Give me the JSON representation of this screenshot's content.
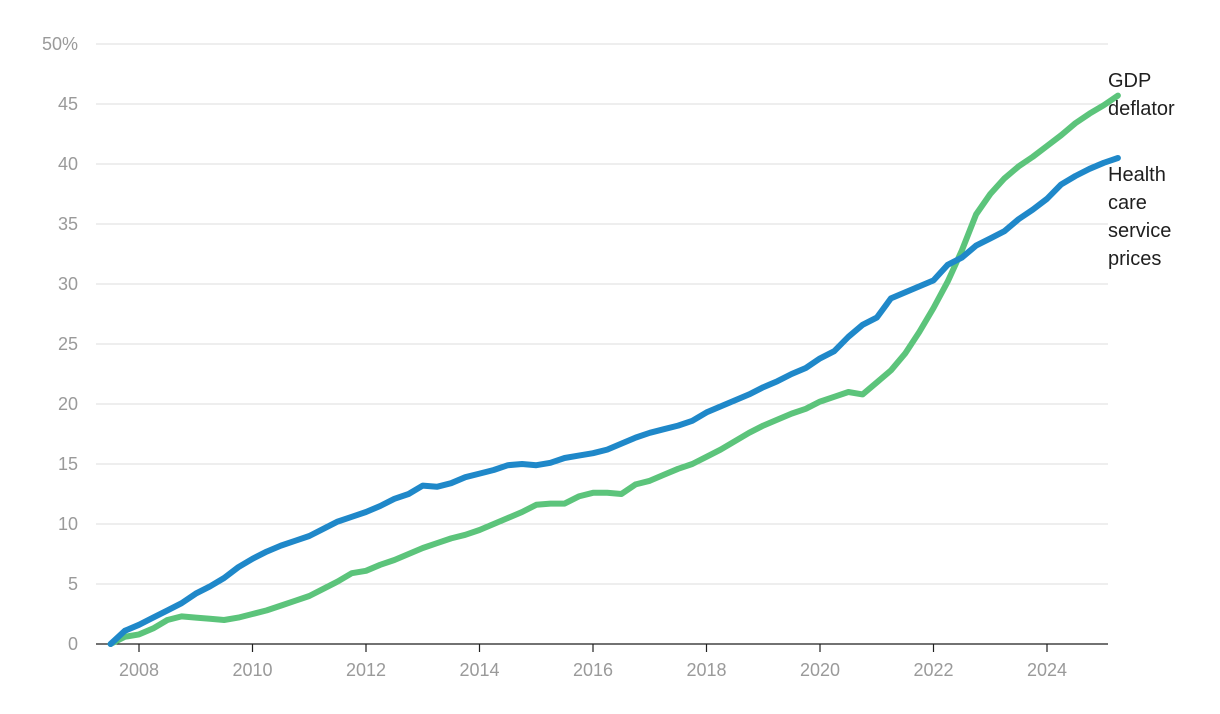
{
  "chart_data": {
    "type": "line",
    "title": "",
    "xlabel": "",
    "ylabel": "",
    "ylim": [
      0,
      50
    ],
    "xlim": [
      2007.0,
      2025.0
    ],
    "y_ticks": [
      {
        "value": 0,
        "label": "0"
      },
      {
        "value": 5,
        "label": "5"
      },
      {
        "value": 10,
        "label": "10"
      },
      {
        "value": 15,
        "label": "15"
      },
      {
        "value": 20,
        "label": "20"
      },
      {
        "value": 25,
        "label": "25"
      },
      {
        "value": 30,
        "label": "30"
      },
      {
        "value": 35,
        "label": "35"
      },
      {
        "value": 40,
        "label": "40"
      },
      {
        "value": 45,
        "label": "45"
      },
      {
        "value": 50,
        "label": "50%"
      }
    ],
    "x_ticks": [
      {
        "value": 2008,
        "label": "2008"
      },
      {
        "value": 2010,
        "label": "2010"
      },
      {
        "value": 2012,
        "label": "2012"
      },
      {
        "value": 2014,
        "label": "2014"
      },
      {
        "value": 2016,
        "label": "2016"
      },
      {
        "value": 2018,
        "label": "2018"
      },
      {
        "value": 2020,
        "label": "2020"
      },
      {
        "value": 2022,
        "label": "2022"
      },
      {
        "value": 2024,
        "label": "2024"
      }
    ],
    "grid": true,
    "legend": "direct labels at right end of lines",
    "series": [
      {
        "key": "gdp",
        "name": "GDP deflator",
        "label_lines": [
          "GDP",
          "deflator"
        ],
        "color": "#5cc47b",
        "points": [
          [
            2007.5,
            0.0
          ],
          [
            2007.75,
            0.6
          ],
          [
            2008.0,
            0.8
          ],
          [
            2008.25,
            1.3
          ],
          [
            2008.5,
            2.0
          ],
          [
            2008.75,
            2.3
          ],
          [
            2009.0,
            2.2
          ],
          [
            2009.25,
            2.1
          ],
          [
            2009.5,
            2.0
          ],
          [
            2009.75,
            2.2
          ],
          [
            2010.0,
            2.5
          ],
          [
            2010.25,
            2.8
          ],
          [
            2010.5,
            3.2
          ],
          [
            2010.75,
            3.6
          ],
          [
            2011.0,
            4.0
          ],
          [
            2011.25,
            4.6
          ],
          [
            2011.5,
            5.2
          ],
          [
            2011.75,
            5.9
          ],
          [
            2012.0,
            6.1
          ],
          [
            2012.25,
            6.6
          ],
          [
            2012.5,
            7.0
          ],
          [
            2012.75,
            7.5
          ],
          [
            2013.0,
            8.0
          ],
          [
            2013.25,
            8.4
          ],
          [
            2013.5,
            8.8
          ],
          [
            2013.75,
            9.1
          ],
          [
            2014.0,
            9.5
          ],
          [
            2014.25,
            10.0
          ],
          [
            2014.5,
            10.5
          ],
          [
            2014.75,
            11.0
          ],
          [
            2015.0,
            11.6
          ],
          [
            2015.25,
            11.7
          ],
          [
            2015.5,
            11.7
          ],
          [
            2015.75,
            12.3
          ],
          [
            2016.0,
            12.6
          ],
          [
            2016.25,
            12.6
          ],
          [
            2016.5,
            12.5
          ],
          [
            2016.75,
            13.3
          ],
          [
            2017.0,
            13.6
          ],
          [
            2017.25,
            14.1
          ],
          [
            2017.5,
            14.6
          ],
          [
            2017.75,
            15.0
          ],
          [
            2018.0,
            15.6
          ],
          [
            2018.25,
            16.2
          ],
          [
            2018.5,
            16.9
          ],
          [
            2018.75,
            17.6
          ],
          [
            2019.0,
            18.2
          ],
          [
            2019.25,
            18.7
          ],
          [
            2019.5,
            19.2
          ],
          [
            2019.75,
            19.6
          ],
          [
            2020.0,
            20.2
          ],
          [
            2020.25,
            20.6
          ],
          [
            2020.5,
            21.0
          ],
          [
            2020.75,
            20.8
          ],
          [
            2021.0,
            21.8
          ],
          [
            2021.25,
            22.8
          ],
          [
            2021.5,
            24.2
          ],
          [
            2021.75,
            26.0
          ],
          [
            2022.0,
            28.0
          ],
          [
            2022.25,
            30.2
          ],
          [
            2022.5,
            32.8
          ],
          [
            2022.75,
            35.8
          ],
          [
            2023.0,
            37.5
          ],
          [
            2023.25,
            38.8
          ],
          [
            2023.5,
            39.8
          ],
          [
            2023.75,
            40.6
          ],
          [
            2024.0,
            41.5
          ],
          [
            2024.25,
            42.4
          ],
          [
            2024.5,
            43.4
          ],
          [
            2024.75,
            44.2
          ],
          [
            2025.0,
            44.9
          ],
          [
            2025.25,
            45.7
          ]
        ]
      },
      {
        "key": "health",
        "name": "Health care service prices",
        "label_lines": [
          "Health",
          "care",
          "service",
          "prices"
        ],
        "color": "#1f88c9",
        "points": [
          [
            2007.5,
            0.0
          ],
          [
            2007.75,
            1.1
          ],
          [
            2008.0,
            1.6
          ],
          [
            2008.25,
            2.2
          ],
          [
            2008.5,
            2.8
          ],
          [
            2008.75,
            3.4
          ],
          [
            2009.0,
            4.2
          ],
          [
            2009.25,
            4.8
          ],
          [
            2009.5,
            5.5
          ],
          [
            2009.75,
            6.4
          ],
          [
            2010.0,
            7.1
          ],
          [
            2010.25,
            7.7
          ],
          [
            2010.5,
            8.2
          ],
          [
            2010.75,
            8.6
          ],
          [
            2011.0,
            9.0
          ],
          [
            2011.25,
            9.6
          ],
          [
            2011.5,
            10.2
          ],
          [
            2011.75,
            10.6
          ],
          [
            2012.0,
            11.0
          ],
          [
            2012.25,
            11.5
          ],
          [
            2012.5,
            12.1
          ],
          [
            2012.75,
            12.5
          ],
          [
            2013.0,
            13.2
          ],
          [
            2013.25,
            13.1
          ],
          [
            2013.5,
            13.4
          ],
          [
            2013.75,
            13.9
          ],
          [
            2014.0,
            14.2
          ],
          [
            2014.25,
            14.5
          ],
          [
            2014.5,
            14.9
          ],
          [
            2014.75,
            15.0
          ],
          [
            2015.0,
            14.9
          ],
          [
            2015.25,
            15.1
          ],
          [
            2015.5,
            15.5
          ],
          [
            2015.75,
            15.7
          ],
          [
            2016.0,
            15.9
          ],
          [
            2016.25,
            16.2
          ],
          [
            2016.5,
            16.7
          ],
          [
            2016.75,
            17.2
          ],
          [
            2017.0,
            17.6
          ],
          [
            2017.25,
            17.9
          ],
          [
            2017.5,
            18.2
          ],
          [
            2017.75,
            18.6
          ],
          [
            2018.0,
            19.3
          ],
          [
            2018.25,
            19.8
          ],
          [
            2018.5,
            20.3
          ],
          [
            2018.75,
            20.8
          ],
          [
            2019.0,
            21.4
          ],
          [
            2019.25,
            21.9
          ],
          [
            2019.5,
            22.5
          ],
          [
            2019.75,
            23.0
          ],
          [
            2020.0,
            23.8
          ],
          [
            2020.25,
            24.4
          ],
          [
            2020.5,
            25.6
          ],
          [
            2020.75,
            26.6
          ],
          [
            2021.0,
            27.2
          ],
          [
            2021.25,
            28.8
          ],
          [
            2021.5,
            29.3
          ],
          [
            2021.75,
            29.8
          ],
          [
            2022.0,
            30.3
          ],
          [
            2022.25,
            31.6
          ],
          [
            2022.5,
            32.2
          ],
          [
            2022.75,
            33.2
          ],
          [
            2023.0,
            33.8
          ],
          [
            2023.25,
            34.4
          ],
          [
            2023.5,
            35.4
          ],
          [
            2023.75,
            36.2
          ],
          [
            2024.0,
            37.1
          ],
          [
            2024.25,
            38.3
          ],
          [
            2024.5,
            39.0
          ],
          [
            2024.75,
            39.6
          ],
          [
            2025.0,
            40.1
          ],
          [
            2025.25,
            40.5
          ]
        ]
      }
    ]
  }
}
